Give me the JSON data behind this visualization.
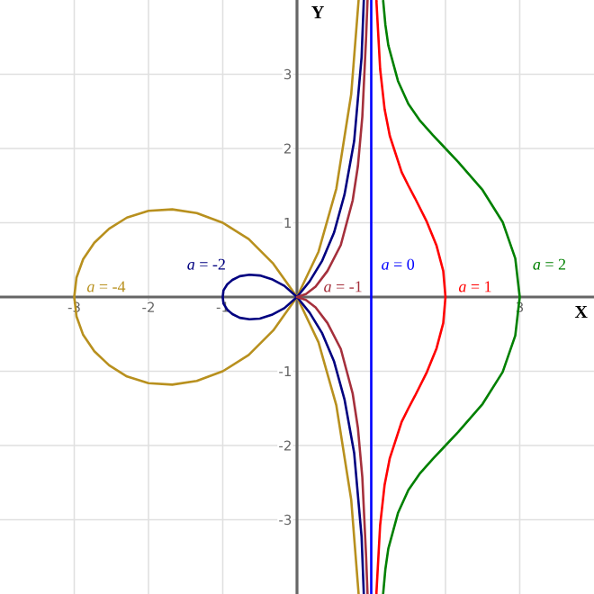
{
  "chart_data": {
    "type": "line",
    "xlabel": "X",
    "ylabel": "Y",
    "xlim": [
      -4,
      4
    ],
    "ylim": [
      -4,
      4
    ],
    "xticks": [
      -3,
      -2,
      -1,
      {
        "value": 1,
        "label": null
      },
      {
        "value": 2,
        "label": null
      },
      3
    ],
    "yticks": [
      -3,
      -2,
      -1,
      1,
      2,
      3
    ],
    "grid": true,
    "legend": false,
    "marker": "none",
    "line_style": "solid",
    "series": [
      {
        "name": "*a* = -4",
        "color": "#b8901e",
        "x": [
          0.83,
          0.73,
          0.53,
          0.29,
          0,
          -0.32,
          -0.65,
          -1,
          -1.35,
          -1.68,
          -2,
          -2.29,
          -2.53,
          -2.73,
          -2.88,
          -2.97,
          -3,
          -2.97,
          -2.88,
          -2.73,
          -2.53,
          -2.29,
          -2,
          -1.68,
          -1.35,
          -1,
          -0.65,
          -0.32,
          0,
          0.29,
          0.53,
          0.73,
          0.83
        ],
        "values": [
          -4,
          -2.73,
          -1.46,
          -0.61,
          0,
          0.45,
          0.78,
          1,
          1.13,
          1.18,
          1.16,
          1.07,
          0.92,
          0.73,
          0.51,
          0.26,
          0,
          -0.26,
          -0.51,
          -0.73,
          -0.92,
          -1.07,
          -1.16,
          -1.18,
          -1.13,
          -1,
          -0.78,
          -0.45,
          0,
          0.61,
          1.46,
          2.73,
          4
        ]
      },
      {
        "name": "*a* = -2",
        "color": "#000080",
        "x": [
          0.9,
          0.87,
          0.77,
          0.64,
          0.5,
          0.34,
          0.17,
          0,
          -0.17,
          -0.34,
          -0.5,
          -0.64,
          -0.77,
          -0.87,
          -0.94,
          -0.99,
          -1,
          -0.99,
          -0.94,
          -0.87,
          -0.77,
          -0.64,
          -0.5,
          -0.34,
          -0.17,
          0,
          0.17,
          0.34,
          0.5,
          0.64,
          0.77,
          0.87,
          0.9
        ],
        "values": [
          -4,
          -3.23,
          -2.1,
          -1.38,
          -0.87,
          -0.49,
          -0.21,
          0,
          0.15,
          0.24,
          0.29,
          0.3,
          0.28,
          0.23,
          0.17,
          0.09,
          0,
          -0.09,
          -0.17,
          -0.23,
          -0.28,
          -0.3,
          -0.29,
          -0.24,
          -0.15,
          0,
          0.21,
          0.49,
          0.87,
          1.38,
          2.1,
          3.23,
          4
        ]
      },
      {
        "name": "*a* = -1",
        "color": "#a5303c",
        "x": [
          0.95,
          0.93,
          0.88,
          0.82,
          0.75,
          0.59,
          0.41,
          0.25,
          0.12,
          0.03,
          0,
          0.03,
          0.12,
          0.25,
          0.41,
          0.59,
          0.75,
          0.82,
          0.88,
          0.93,
          0.95
        ],
        "values": [
          -4,
          -3.48,
          -2.43,
          -1.76,
          -1.3,
          -0.7,
          -0.35,
          -0.14,
          -0.04,
          -0.01,
          0,
          0.01,
          0.04,
          0.14,
          0.35,
          0.7,
          1.3,
          1.76,
          2.43,
          3.48,
          4
        ]
      },
      {
        "name": "*a* = 0",
        "color": "#0000ff",
        "x": [
          1,
          1
        ],
        "values": [
          -4,
          4
        ]
      },
      {
        "name": "*a* = 1",
        "color": "#ff0000",
        "x": [
          1.07,
          1.07,
          1.12,
          1.18,
          1.25,
          1.41,
          1.5,
          1.59,
          1.75,
          1.88,
          1.97,
          2,
          1.97,
          1.88,
          1.75,
          1.59,
          1.5,
          1.41,
          1.25,
          1.18,
          1.12,
          1.07,
          1.07
        ],
        "values": [
          -4,
          -3.98,
          -3.07,
          -2.53,
          -2.17,
          -1.68,
          -1.5,
          -1.33,
          -1.01,
          -0.69,
          -0.35,
          0,
          0.35,
          0.69,
          1.01,
          1.33,
          1.5,
          1.68,
          2.17,
          2.53,
          3.07,
          3.98,
          4
        ]
      },
      {
        "name": "*a* = 2",
        "color": "#008000",
        "x": [
          1.16,
          1.19,
          1.23,
          1.36,
          1.5,
          1.66,
          1.83,
          2,
          2.17,
          2.5,
          2.77,
          2.94,
          3,
          2.94,
          2.77,
          2.5,
          2.17,
          2,
          1.83,
          1.66,
          1.5,
          1.36,
          1.23,
          1.19,
          1.16
        ],
        "values": [
          -4,
          -3.67,
          -3.39,
          -2.91,
          -2.6,
          -2.37,
          -2.18,
          -2,
          -1.82,
          -1.44,
          -1.01,
          -0.52,
          0,
          0.52,
          1.01,
          1.44,
          1.82,
          2,
          2.18,
          2.37,
          2.6,
          2.91,
          3.39,
          3.67,
          4
        ]
      }
    ]
  }
}
